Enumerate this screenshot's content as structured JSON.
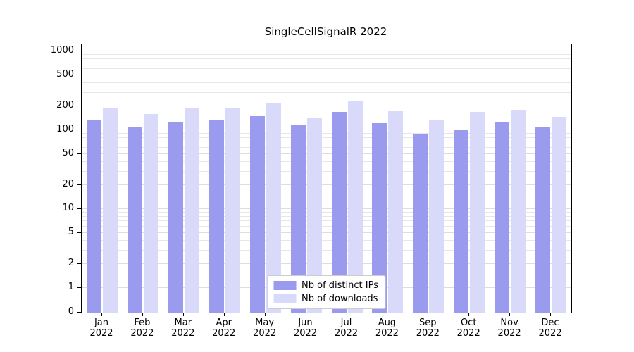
{
  "chart_data": {
    "type": "bar",
    "title": "SingleCellSignalR 2022",
    "scale": "symlog",
    "grid": true,
    "legend_position": "lower center inside",
    "categories": [
      "Jan",
      "Feb",
      "Mar",
      "Apr",
      "May",
      "Jun",
      "Jul",
      "Aug",
      "Sep",
      "Oct",
      "Nov",
      "Dec"
    ],
    "year_label": "2022",
    "yticks": [
      0,
      1,
      2,
      5,
      10,
      20,
      50,
      100,
      200,
      500,
      1000
    ],
    "ylim": [
      0,
      1200
    ],
    "series": [
      {
        "name": "Nb of distinct IPs",
        "color": "#9a9aee",
        "values": [
          135,
          112,
          125,
          135,
          152,
          118,
          172,
          124,
          90,
          102,
          128,
          108
        ]
      },
      {
        "name": "Nb of downloads",
        "color": "#d9d9fa",
        "values": [
          195,
          160,
          188,
          195,
          222,
          142,
          238,
          175,
          135,
          172,
          182,
          148
        ]
      }
    ]
  }
}
